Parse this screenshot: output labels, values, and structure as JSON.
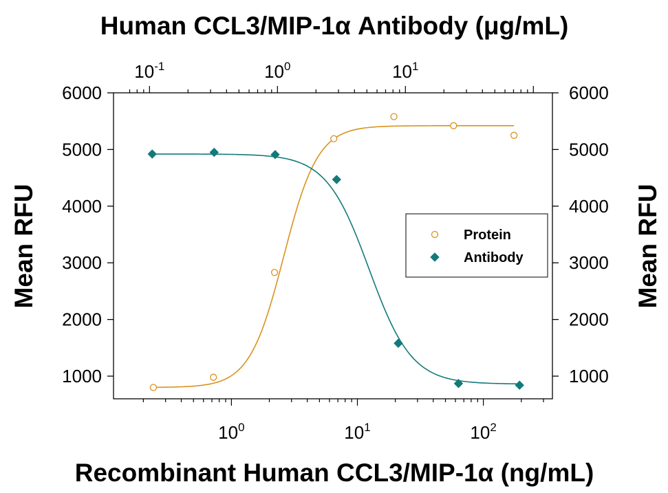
{
  "chart_data": {
    "type": "scatter",
    "top_title": "Human CCL3/MIP-1α Antibody (μg/mL)",
    "xlabel": "Recombinant Human CCL3/MIP-1α (ng/mL)",
    "ylabel_left": "Mean RFU",
    "ylabel_right": "Mean RFU",
    "ylim": [
      600,
      6000
    ],
    "y_ticks": [
      1000,
      2000,
      3000,
      4000,
      5000,
      6000
    ],
    "x_bottom": {
      "scale": "log",
      "xlim": [
        0.14,
        300
      ],
      "major_ticks": [
        {
          "value": 1,
          "base": "10",
          "exp": "0"
        },
        {
          "value": 10,
          "base": "10",
          "exp": "1"
        },
        {
          "value": 100,
          "base": "10",
          "exp": "2"
        }
      ]
    },
    "x_top": {
      "scale": "log",
      "xlim": [
        0.063,
        120
      ],
      "major_ticks": [
        {
          "value": 0.1,
          "base": "10",
          "exp": "-1"
        },
        {
          "value": 1,
          "base": "10",
          "exp": "0"
        },
        {
          "value": 10,
          "base": "10",
          "exp": "1"
        }
      ]
    },
    "grid": false,
    "legend_position": "center-right",
    "series": [
      {
        "name": "Protein",
        "axis": "bottom",
        "marker": "open-circle",
        "color": "#D9921E",
        "x": [
          0.24,
          0.72,
          2.2,
          6.5,
          19.5,
          58,
          175
        ],
        "y": [
          800,
          980,
          2830,
          5190,
          5580,
          5420,
          5250
        ],
        "fit": {
          "bottom": 800,
          "top": 5420,
          "ec50": 2.6,
          "hill": 3.2
        }
      },
      {
        "name": "Antibody",
        "axis": "top",
        "marker": "filled-diamond",
        "color": "#127A7A",
        "x": [
          0.105,
          0.32,
          0.96,
          2.9,
          8.8,
          26,
          78
        ],
        "y": [
          4920,
          4950,
          4910,
          4470,
          1580,
          870,
          840
        ],
        "fit": {
          "bottom": 860,
          "top": 4920,
          "ec50": 5.2,
          "hill": 2.6
        }
      }
    ]
  }
}
